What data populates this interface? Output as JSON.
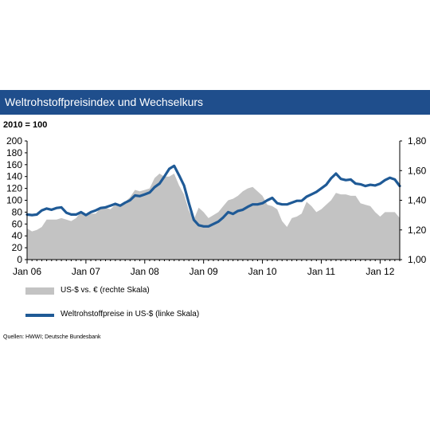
{
  "title": "Weltrohstoffpreisindex  und Wechselkurs",
  "subtitle": "2010 = 100",
  "source": "Quellen: HWWI; Deutsche Bundesbank",
  "colors": {
    "title_bg": "#1f4e8c",
    "line": "#1f5a96",
    "area": "#c3c3c3",
    "axis": "#000000"
  },
  "chart_data": {
    "type": "line",
    "x_tick_labels": [
      "Jan 06",
      "Jan 07",
      "Jan 08",
      "Jan 09",
      "Jan 10",
      "Jan 11",
      "Jan 12"
    ],
    "x_start": "2006-01",
    "y_left_ticks": [
      "0",
      "20",
      "40",
      "60",
      "80",
      "100",
      "120",
      "140",
      "160",
      "180",
      "200"
    ],
    "y_right_ticks": [
      "1,00",
      "1,20",
      "1,40",
      "1,60",
      "1,80"
    ],
    "ylim_left": [
      0,
      200
    ],
    "ylim_right": [
      1.0,
      1.8
    ],
    "grid": false,
    "legend_position": "bottom",
    "series": [
      {
        "name": "US-$ vs. € (rechte Skala)",
        "type": "area",
        "axis": "right",
        "values": [
          1.21,
          1.19,
          1.2,
          1.22,
          1.27,
          1.27,
          1.27,
          1.28,
          1.27,
          1.26,
          1.28,
          1.32,
          1.3,
          1.31,
          1.31,
          1.35,
          1.35,
          1.34,
          1.37,
          1.36,
          1.39,
          1.42,
          1.47,
          1.46,
          1.47,
          1.48,
          1.55,
          1.58,
          1.56,
          1.56,
          1.58,
          1.5,
          1.44,
          1.33,
          1.27,
          1.35,
          1.32,
          1.28,
          1.3,
          1.32,
          1.36,
          1.4,
          1.41,
          1.43,
          1.46,
          1.48,
          1.49,
          1.46,
          1.43,
          1.37,
          1.36,
          1.34,
          1.26,
          1.22,
          1.28,
          1.29,
          1.31,
          1.39,
          1.36,
          1.32,
          1.34,
          1.37,
          1.4,
          1.45,
          1.44,
          1.44,
          1.43,
          1.43,
          1.38,
          1.37,
          1.36,
          1.32,
          1.29,
          1.32,
          1.32,
          1.32,
          1.28
        ]
      },
      {
        "name": "Weltrohstoffpreise in US-$ (linke Skala)",
        "type": "line",
        "axis": "left",
        "values": [
          76,
          75,
          76,
          83,
          86,
          84,
          87,
          88,
          79,
          76,
          76,
          80,
          75,
          80,
          83,
          87,
          88,
          91,
          94,
          91,
          96,
          100,
          108,
          107,
          110,
          113,
          122,
          128,
          140,
          153,
          158,
          142,
          125,
          95,
          67,
          58,
          56,
          56,
          60,
          64,
          71,
          80,
          77,
          82,
          84,
          89,
          93,
          93,
          95,
          100,
          104,
          95,
          93,
          93,
          96,
          99,
          99,
          106,
          110,
          114,
          120,
          126,
          137,
          145,
          136,
          134,
          135,
          128,
          127,
          124,
          126,
          125,
          128,
          134,
          138,
          135,
          124
        ]
      }
    ]
  },
  "legend": {
    "area_label": "US-$ vs. € (rechte Skala)",
    "line_label": "Weltrohstoffpreise in US-$ (linke Skala)"
  }
}
